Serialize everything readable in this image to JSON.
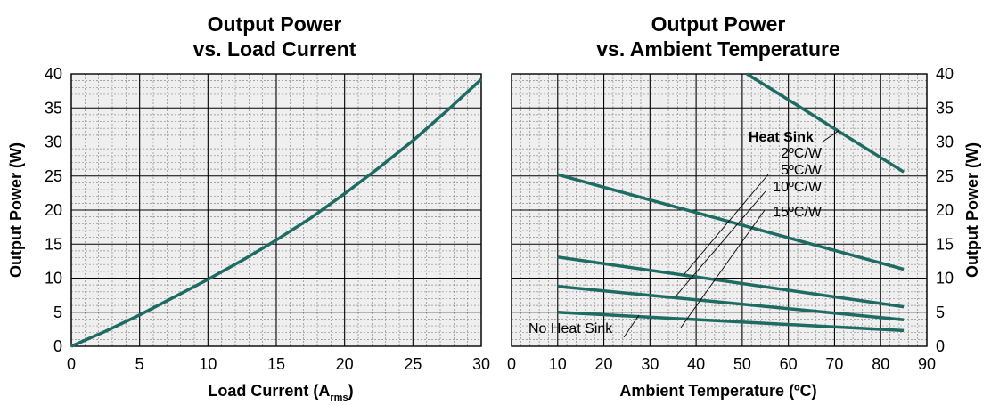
{
  "colors": {
    "series": "#1d6b62",
    "plot_bg": "#efefef",
    "grid": "#000000"
  },
  "chart_data": [
    {
      "type": "line",
      "title_line1": "Output Power",
      "title_line2": "vs. Load Current",
      "xlabel": "Load Current (A",
      "xlabel_sub": "rms",
      "xlabel_end": ")",
      "ylabel": "Output Power (W)",
      "xlim": [
        0,
        30
      ],
      "ylim": [
        0,
        40
      ],
      "x_ticks": [
        0,
        5,
        10,
        15,
        20,
        25,
        30
      ],
      "y_ticks": [
        0,
        5,
        10,
        15,
        20,
        25,
        30,
        35,
        40
      ],
      "grid": true,
      "series": [
        {
          "x": [
            0,
            2.5,
            5,
            7.5,
            10,
            12.5,
            15,
            17.5,
            20,
            22.5,
            25,
            27.5,
            30
          ],
          "y": [
            0,
            2.2,
            4.6,
            7.2,
            9.8,
            12.6,
            15.6,
            18.8,
            22.4,
            26.2,
            30.2,
            34.6,
            39.2
          ]
        }
      ]
    },
    {
      "type": "line",
      "title_line1": "Output Power",
      "title_line2": "vs. Ambient Temperature",
      "xlabel": "Ambient Temperature (ºC)",
      "ylabel": "Output Power (W)",
      "xlim": [
        0,
        90
      ],
      "ylim": [
        0,
        40
      ],
      "x_ticks": [
        0,
        10,
        20,
        30,
        40,
        50,
        60,
        70,
        80,
        90
      ],
      "y_ticks": [
        0,
        5,
        10,
        15,
        20,
        25,
        30,
        35,
        40
      ],
      "grid": true,
      "legend_title": "Heat Sink",
      "series": [
        {
          "name": "2ºC/W",
          "x": [
            51,
            85
          ],
          "y": [
            40,
            25.6
          ]
        },
        {
          "name": "5ºC/W",
          "x": [
            10,
            85
          ],
          "y": [
            25.2,
            11.3
          ]
        },
        {
          "name": "10ºC/W",
          "x": [
            10,
            85
          ],
          "y": [
            13.1,
            5.8
          ]
        },
        {
          "name": "15ºC/W",
          "x": [
            10,
            85
          ],
          "y": [
            8.8,
            3.9
          ]
        },
        {
          "name": "No Heat Sink",
          "x": [
            10,
            85
          ],
          "y": [
            5.0,
            2.3
          ]
        }
      ]
    }
  ]
}
